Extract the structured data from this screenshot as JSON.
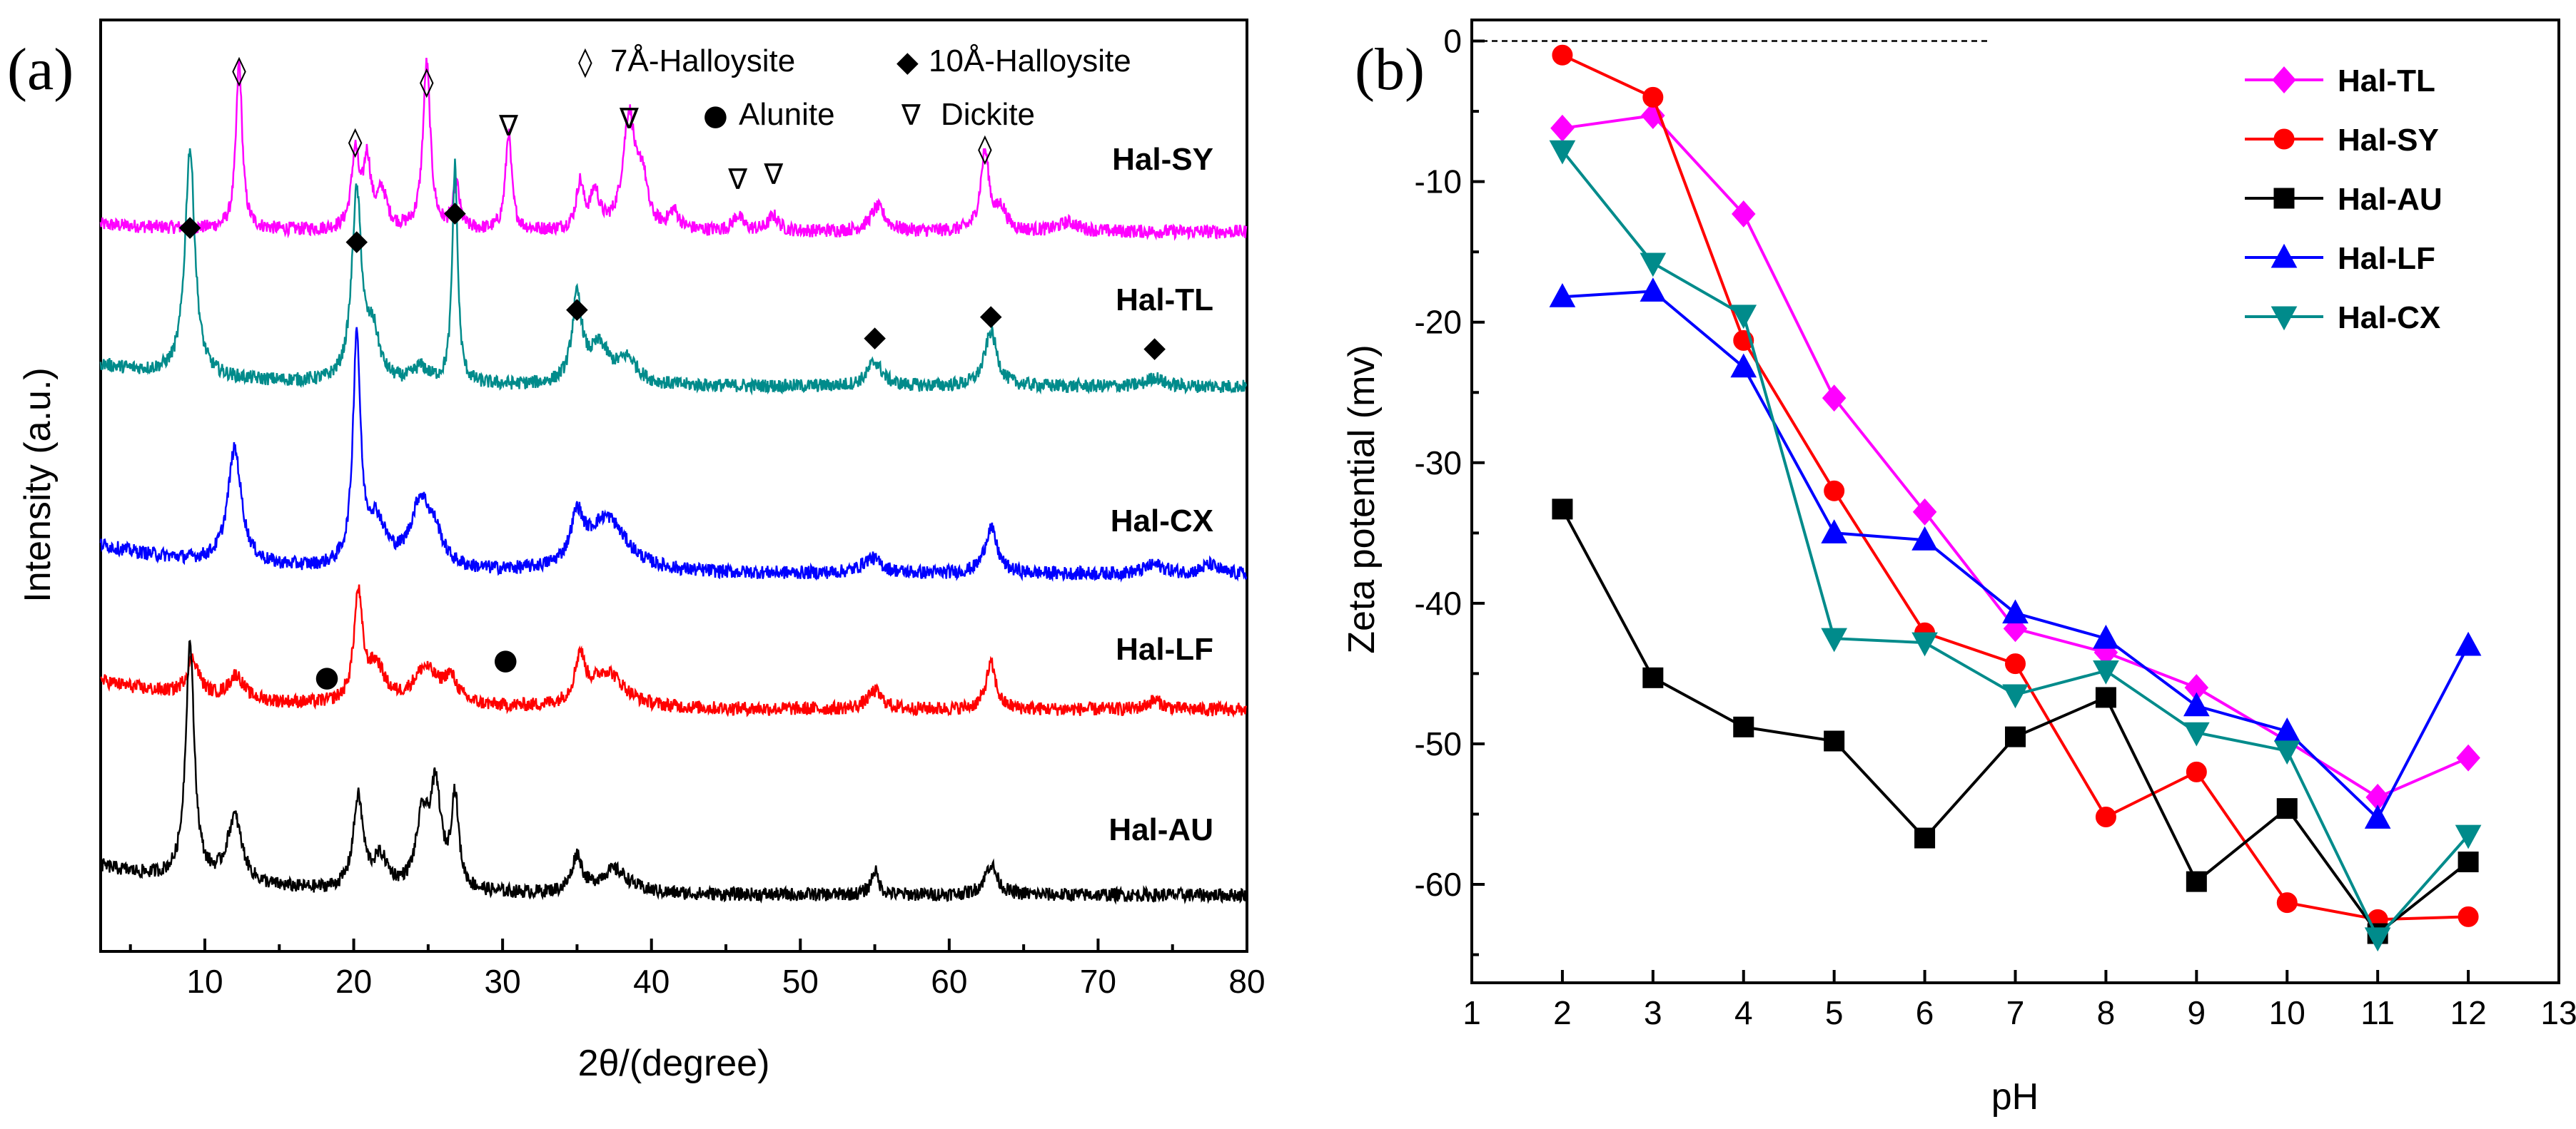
{
  "colors": {
    "Hal-SY": "#ff00ff",
    "Hal-TL": "#008b8b",
    "Hal-CX": "#0000ff",
    "Hal-LF": "#ff0000",
    "Hal-AU": "#000000",
    "b_Hal-TL": "#ff00ff",
    "b_Hal-SY": "#ff0000",
    "b_Hal-AU": "#000000",
    "b_Hal-LF": "#0000ff",
    "b_Hal-CX": "#008b8b"
  },
  "chart_data": [
    {
      "type": "line",
      "panel_label": "(a)",
      "title": "",
      "xlabel": "2θ/(degree)",
      "ylabel": "Intensity (a.u.)",
      "xlim": [
        3,
        80
      ],
      "x_ticks": [
        10,
        20,
        30,
        40,
        50,
        60,
        70,
        80
      ],
      "y_ticks_shown": false,
      "legend": [
        {
          "symbol": "◊",
          "label": "7Å-Halloysite"
        },
        {
          "symbol": "◆",
          "label": "10Å-Halloysite"
        },
        {
          "symbol": "●",
          "label": "Alunite"
        },
        {
          "symbol": "∇",
          "label": "Dickite"
        }
      ],
      "series": [
        {
          "name": "Hal-SY",
          "offset": 4.0,
          "baseline": 0.02,
          "peaks": [
            [
              12.3,
              0.55,
              0.25
            ],
            [
              20.1,
              0.25,
              0.3
            ],
            [
              20.9,
              0.22,
              0.3
            ],
            [
              21.9,
              0.12,
              0.4
            ],
            [
              24.9,
              0.55,
              0.3
            ],
            [
              26.9,
              0.15,
              0.25
            ],
            [
              30.4,
              0.32,
              0.25
            ],
            [
              35.2,
              0.15,
              0.3
            ],
            [
              36.2,
              0.12,
              0.35
            ],
            [
              38.5,
              0.38,
              0.5
            ],
            [
              39.4,
              0.15,
              0.35
            ],
            [
              41.5,
              0.06,
              0.4
            ],
            [
              45.8,
              0.05,
              0.4
            ],
            [
              48.2,
              0.05,
              0.4
            ],
            [
              55.2,
              0.08,
              0.6
            ],
            [
              62.4,
              0.26,
              0.35
            ],
            [
              63.5,
              0.07,
              0.4
            ],
            [
              68,
              0.03,
              0.8
            ]
          ]
        },
        {
          "name": "Hal-TL",
          "offset": 3.0,
          "baseline": 0.06,
          "peaks": [
            [
              9.0,
              0.75,
              0.4
            ],
            [
              20.2,
              0.62,
              0.4
            ],
            [
              21.3,
              0.15,
              0.5
            ],
            [
              24.5,
              0.05,
              0.6
            ],
            [
              26.8,
              0.72,
              0.22
            ],
            [
              35.0,
              0.28,
              0.4
            ],
            [
              36.5,
              0.12,
              0.8
            ],
            [
              38.4,
              0.08,
              0.8
            ],
            [
              55.0,
              0.08,
              0.6
            ],
            [
              62.8,
              0.18,
              0.5
            ],
            [
              73.8,
              0.03,
              0.6
            ]
          ]
        },
        {
          "name": "Hal-CX",
          "offset": 2.0,
          "baseline": 0.08,
          "peaks": [
            [
              12.0,
              0.38,
              0.55
            ],
            [
              20.2,
              0.75,
              0.3
            ],
            [
              21.5,
              0.15,
              0.8
            ],
            [
              24.5,
              0.22,
              0.8
            ],
            [
              25.5,
              0.08,
              0.6
            ],
            [
              35.0,
              0.15,
              0.5
            ],
            [
              37.0,
              0.18,
              1.6
            ],
            [
              54.8,
              0.05,
              0.8
            ],
            [
              62.8,
              0.15,
              0.5
            ],
            [
              73.8,
              0.03,
              0.8
            ],
            [
              77.5,
              0.03,
              0.6
            ]
          ]
        },
        {
          "name": "Hal-LF",
          "offset": 1.1,
          "baseline": 0.08,
          "peaks": [
            [
              9.2,
              0.12,
              0.5
            ],
            [
              12.1,
              0.08,
              0.6
            ],
            [
              20.3,
              0.35,
              0.35
            ],
            [
              21.5,
              0.12,
              0.7
            ],
            [
              24.8,
              0.12,
              1.0
            ],
            [
              26.5,
              0.08,
              0.6
            ],
            [
              35.2,
              0.15,
              0.4
            ],
            [
              37.0,
              0.12,
              1.4
            ],
            [
              55.0,
              0.06,
              0.6
            ],
            [
              62.8,
              0.15,
              0.4
            ],
            [
              73.8,
              0.03,
              0.6
            ]
          ]
        },
        {
          "name": "Hal-AU",
          "offset": 0.0,
          "baseline": 0.08,
          "peaks": [
            [
              9.0,
              0.78,
              0.35
            ],
            [
              12.0,
              0.22,
              0.6
            ],
            [
              20.3,
              0.3,
              0.4
            ],
            [
              21.8,
              0.1,
              0.6
            ],
            [
              24.6,
              0.22,
              0.5
            ],
            [
              25.5,
              0.32,
              0.45
            ],
            [
              26.8,
              0.3,
              0.3
            ],
            [
              35.0,
              0.12,
              0.4
            ],
            [
              37.5,
              0.08,
              1.2
            ],
            [
              55.0,
              0.08,
              0.3
            ],
            [
              62.8,
              0.1,
              0.5
            ]
          ]
        }
      ],
      "annotations": [
        {
          "symbol": "◊",
          "x": 12.3,
          "row": "Hal-SY"
        },
        {
          "symbol": "◊",
          "x": 20.1,
          "row": "Hal-SY"
        },
        {
          "symbol": "◊",
          "x": 24.9,
          "row": "Hal-SY"
        },
        {
          "symbol": "∇",
          "x": 30.4,
          "row": "Hal-SY"
        },
        {
          "symbol": "∇",
          "x": 38.5,
          "row": "Hal-SY"
        },
        {
          "symbol": "∇",
          "x": 45.8,
          "row": "Hal-SY"
        },
        {
          "symbol": "∇",
          "x": 48.2,
          "row": "Hal-SY"
        },
        {
          "symbol": "◊",
          "x": 62.4,
          "row": "Hal-SY"
        },
        {
          "symbol": "◆",
          "x": 9.0,
          "row": "Hal-TL"
        },
        {
          "symbol": "◆",
          "x": 20.2,
          "row": "Hal-TL"
        },
        {
          "symbol": "◆",
          "x": 26.8,
          "row": "Hal-TL"
        },
        {
          "symbol": "◆",
          "x": 35.0,
          "row": "Hal-TL"
        },
        {
          "symbol": "◆",
          "x": 55.0,
          "row": "Hal-TL"
        },
        {
          "symbol": "◆",
          "x": 62.8,
          "row": "Hal-TL"
        },
        {
          "symbol": "◆",
          "x": 73.8,
          "row": "Hal-TL"
        },
        {
          "symbol": "●",
          "x": 18.2,
          "row": "Hal-LF"
        },
        {
          "symbol": "●",
          "x": 30.2,
          "row": "Hal-LF"
        }
      ]
    },
    {
      "type": "line",
      "panel_label": "(b)",
      "title": "",
      "xlabel": "pH",
      "ylabel": "Zeta potential (mv)",
      "xlim": [
        1,
        13
      ],
      "ylim": [
        -67,
        1.5
      ],
      "x_ticks": [
        1,
        2,
        3,
        4,
        5,
        6,
        7,
        8,
        9,
        10,
        11,
        12,
        13
      ],
      "y_ticks": [
        0,
        -10,
        -20,
        -30,
        -40,
        -50,
        -60
      ],
      "zero_reference_line": {
        "y": 0,
        "x_from": 1,
        "x_to": 6.7
      },
      "legend_position": "top-right",
      "x": [
        2,
        3,
        4,
        5,
        6,
        7,
        8,
        9,
        10,
        11,
        12
      ],
      "series": [
        {
          "name": "Hal-TL",
          "marker": "diamond",
          "values": [
            -6.2,
            -5.3,
            -12.3,
            -25.4,
            -33.5,
            -41.8,
            -43.5,
            -46.0,
            -49.8,
            -53.8,
            -51.0
          ]
        },
        {
          "name": "Hal-SY",
          "marker": "circle",
          "values": [
            -1.0,
            -4.0,
            -21.3,
            -32.0,
            -42.1,
            -44.3,
            -55.2,
            -52.0,
            -61.3,
            -62.5,
            -62.3
          ]
        },
        {
          "name": "Hal-AU",
          "marker": "square",
          "values": [
            -33.3,
            -45.3,
            -48.8,
            -49.8,
            -56.7,
            -49.5,
            -46.7,
            -59.8,
            -54.6,
            -63.5,
            -58.4
          ]
        },
        {
          "name": "Hal-LF",
          "marker": "triangle-up",
          "values": [
            -18.2,
            -17.8,
            -23.2,
            -35.0,
            -35.5,
            -40.7,
            -42.5,
            -47.3,
            -49.1,
            -55.3,
            -43.0
          ]
        },
        {
          "name": "Hal-CX",
          "marker": "triangle-down",
          "values": [
            -7.8,
            -15.8,
            -19.5,
            -42.5,
            -42.8,
            -46.5,
            -44.8,
            -49.2,
            -50.5,
            -63.8,
            -56.5
          ]
        }
      ]
    }
  ]
}
